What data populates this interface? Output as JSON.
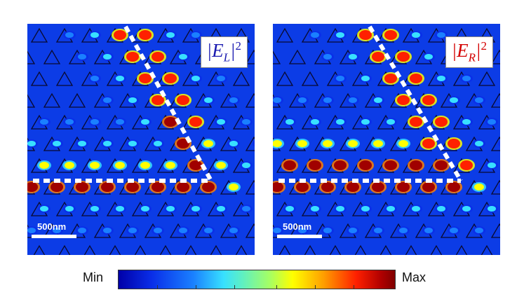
{
  "panels": [
    {
      "field_label": "E",
      "subscript": "L",
      "power": "2",
      "scale_label": "500nm",
      "label_color": "#1a1ab0"
    },
    {
      "field_label": "E",
      "subscript": "R",
      "power": "2",
      "scale_label": "500nm",
      "label_color": "#d40000"
    }
  ],
  "colorbar": {
    "min_label": "Min",
    "max_label": "Max",
    "colors": [
      "#0000a8",
      "#1a80ff",
      "#38e0ff",
      "#a8ff60",
      "#ffff00",
      "#ff2000",
      "#800000"
    ]
  }
}
